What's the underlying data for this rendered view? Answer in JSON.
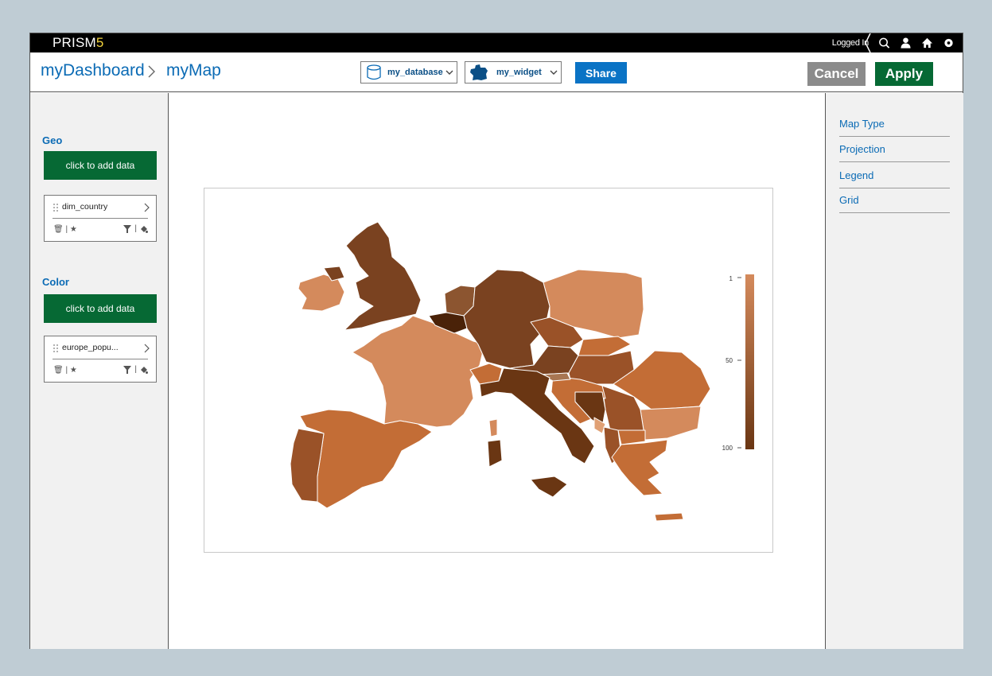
{
  "app": {
    "brand_main": "PRISM",
    "brand_num": "5",
    "logged_in": "Logged In"
  },
  "breadcrumb": {
    "dashboard": "myDashboard",
    "page": "myMap"
  },
  "toolbar": {
    "database": "my_database",
    "widget": "my_widget",
    "share": "Share",
    "cancel": "Cancel",
    "apply": "Apply"
  },
  "sidebar": {
    "geo_title": "Geo",
    "color_title": "Color",
    "add_data": "click to add data",
    "geo_field": "dim_country",
    "color_field": "europe_popu..."
  },
  "options": {
    "items": [
      "Map Type",
      "Projection",
      "Legend",
      "Grid"
    ]
  },
  "legend": {
    "ticks": [
      "1",
      "50",
      "100"
    ],
    "colors": [
      "#d48a5c",
      "#6a3613"
    ]
  },
  "colors": {
    "accent": "#0b6bb5",
    "green": "#066934",
    "share": "#0a73c5",
    "cancel": "#8b8b8b"
  },
  "icons": [
    "search-icon",
    "user-icon",
    "home-icon",
    "settings-icon",
    "database-icon",
    "map-icon",
    "chevron-down-icon",
    "chevron-right-icon",
    "drag-handle-icon",
    "trash-icon",
    "star-icon",
    "filter-icon",
    "paint-icon"
  ]
}
